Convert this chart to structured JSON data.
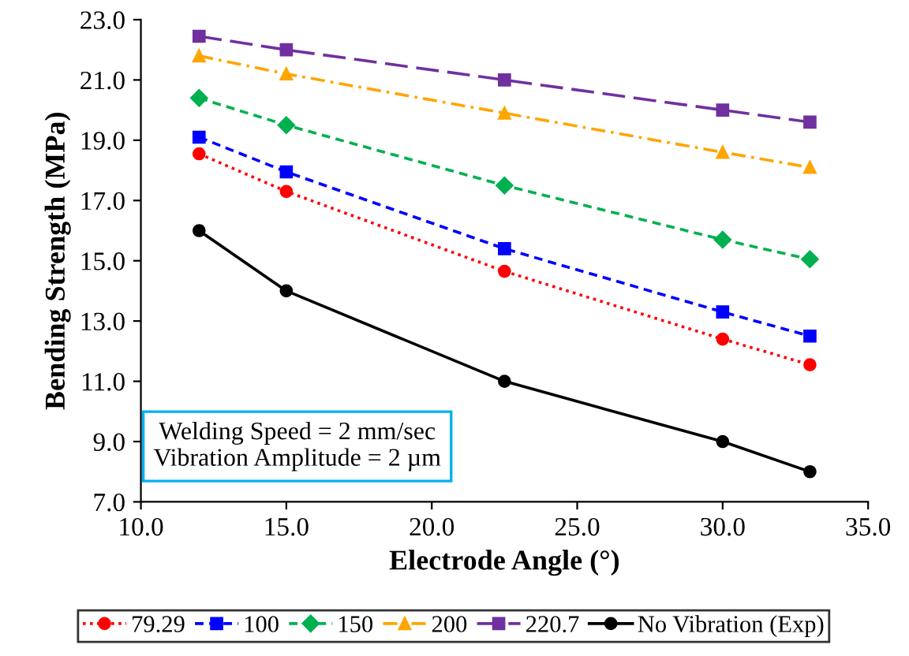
{
  "chart_data": {
    "type": "line",
    "xlabel": "Electrode Angle (°)",
    "ylabel": "Bending Strength (MPa)",
    "xlim": [
      10,
      35
    ],
    "xticks": [
      {
        "value": 10,
        "label": "10.0"
      },
      {
        "value": 15,
        "label": "15.0"
      },
      {
        "value": 20,
        "label": "20.0"
      },
      {
        "value": 25,
        "label": "25.0"
      },
      {
        "value": 30,
        "label": "30.0"
      },
      {
        "value": 35,
        "label": "35.0"
      }
    ],
    "ylim": [
      7,
      23
    ],
    "yticks": [
      {
        "value": 7,
        "label": "7.0"
      },
      {
        "value": 9,
        "label": "9.0"
      },
      {
        "value": 11,
        "label": "11.0"
      },
      {
        "value": 13,
        "label": "13.0"
      },
      {
        "value": 15,
        "label": "15.0"
      },
      {
        "value": 17,
        "label": "17.0"
      },
      {
        "value": 19,
        "label": "19.0"
      },
      {
        "value": 21,
        "label": "21.0"
      },
      {
        "value": 23,
        "label": "23.0"
      }
    ],
    "x": [
      12,
      15,
      22.5,
      30,
      33
    ],
    "grid": false,
    "legend": "bottom",
    "annotations": [
      "Welding Speed = 2 mm/sec\nVibration Amplitude = 2 µm"
    ],
    "series": [
      {
        "name": "79.29",
        "color": "#ff0000",
        "marker": "circle",
        "line_style": "dotted",
        "values": [
          18.55,
          17.3,
          14.65,
          12.4,
          11.55
        ]
      },
      {
        "name": "100",
        "color": "#0000ff",
        "marker": "square",
        "line_style": "dashed",
        "values": [
          19.1,
          17.95,
          15.4,
          13.3,
          12.5
        ]
      },
      {
        "name": "150",
        "color": "#00b050",
        "marker": "diamond",
        "line_style": "dashed",
        "values": [
          20.4,
          19.5,
          17.5,
          15.7,
          15.05
        ]
      },
      {
        "name": "200",
        "color": "#ffa500",
        "marker": "triangle",
        "line_style": "dashdot",
        "values": [
          21.8,
          21.2,
          19.9,
          18.6,
          18.1
        ]
      },
      {
        "name": "220.7",
        "color": "#7030a0",
        "marker": "square",
        "line_style": "longdash",
        "values": [
          22.45,
          22.0,
          21.0,
          20.0,
          19.6
        ]
      },
      {
        "name": "No Vibration (Exp)",
        "color": "#000000",
        "marker": "circle",
        "line_style": "solid",
        "values": [
          16,
          14,
          11,
          9,
          8
        ]
      }
    ]
  }
}
